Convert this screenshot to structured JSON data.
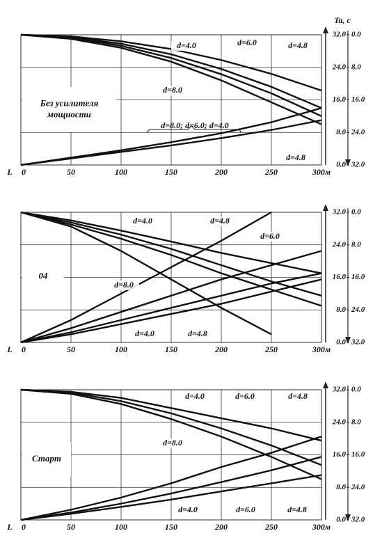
{
  "chart_data": [
    {
      "type": "line",
      "ylabel": "Ta, c",
      "xlabel": "L",
      "inset": [
        "Без усилителя",
        "мощности"
      ],
      "x": [
        0,
        50,
        100,
        150,
        200,
        250,
        300
      ],
      "series": [
        {
          "color": "#111111",
          "values": [
            32,
            31.6,
            30.4,
            28.5,
            25.8,
            22.4,
            18.3
          ]
        },
        {
          "color": "#111111",
          "values": [
            32,
            31.4,
            29.8,
            27.2,
            23.6,
            19.2,
            14.0
          ]
        },
        {
          "color": "#111111",
          "values": [
            32,
            31.3,
            29.3,
            26.3,
            22.3,
            17.6,
            12.0
          ]
        },
        {
          "color": "#111111",
          "values": [
            32,
            31.0,
            28.8,
            25.4,
            20.8,
            15.4,
            10.0
          ]
        },
        {
          "color": "#111111",
          "values": [
            0,
            1.8,
            3.6,
            5.6,
            7.8,
            10.5,
            14.0
          ]
        },
        {
          "color": "#111111",
          "values": [
            0,
            1.6,
            3.2,
            4.8,
            6.6,
            8.6,
            11.0
          ]
        }
      ],
      "annotations": [
        "d=4.0",
        "d=6.0",
        "d=4.8",
        "d=8.0",
        "d=8.0; d=6.0; d=4.0",
        "d=4.8"
      ],
      "xlim": [
        0,
        300
      ],
      "ylim": [
        0,
        32
      ],
      "y2lim": [
        32,
        0
      ],
      "xticks": [
        {
          "value": 0,
          "label": "0"
        },
        50,
        100,
        150,
        200,
        250,
        {
          "value": 300,
          "label": "300м"
        }
      ],
      "yticks": [
        {
          "value": 0,
          "label": "0.0"
        },
        {
          "value": 8,
          "label": "8.0"
        },
        {
          "value": 16,
          "label": "16.0"
        },
        {
          "value": 24,
          "label": "24.0"
        },
        {
          "value": 32,
          "label": "32.0"
        }
      ],
      "y2ticks": [
        {
          "value": 32,
          "label": "32.0"
        },
        {
          "value": 24,
          "label": "24.0"
        },
        {
          "value": 16,
          "label": "16.0"
        },
        {
          "value": 8,
          "label": "8.0"
        },
        {
          "value": 0,
          "label": "0.0"
        }
      ],
      "grid": true
    },
    {
      "type": "line",
      "xlabel": "L",
      "inset": [
        "04"
      ],
      "x": [
        0,
        50,
        100,
        150,
        200,
        250,
        300
      ],
      "series": [
        {
          "color": "#111111",
          "values": [
            32,
            30,
            27.5,
            24.8,
            22,
            19.5,
            17
          ]
        },
        {
          "color": "#111111",
          "values": [
            32,
            29.5,
            26.5,
            23,
            19,
            15,
            11.5
          ]
        },
        {
          "color": "#111111",
          "values": [
            32,
            29,
            25.5,
            21.5,
            17,
            13,
            9
          ]
        },
        {
          "color": "#111111",
          "values": [
            32,
            28.5,
            22.5,
            15.5,
            8.5,
            2.0,
            null
          ]
        },
        {
          "color": "#111111",
          "values": [
            0,
            5.5,
            12,
            18.5,
            25,
            32,
            null
          ]
        },
        {
          "color": "#111111",
          "values": [
            0,
            3.5,
            7.5,
            11.5,
            15.5,
            19,
            22.5
          ]
        },
        {
          "color": "#111111",
          "values": [
            0,
            2.5,
            5.5,
            8.5,
            11.5,
            14.5,
            17
          ]
        },
        {
          "color": "#111111",
          "values": [
            0,
            2,
            4.5,
            7,
            9.5,
            12.5,
            15.5
          ]
        }
      ],
      "annotations": [
        "d=4.0",
        "d=4.8",
        "d=6.0",
        "d=8.0",
        "d=4.0",
        "d=4.8"
      ],
      "xlim": [
        0,
        300
      ],
      "ylim": [
        0,
        32
      ],
      "y2lim": [
        32,
        0
      ],
      "xticks": [
        {
          "value": 0,
          "label": "0"
        },
        50,
        100,
        150,
        200,
        250,
        {
          "value": 300,
          "label": "300м"
        }
      ],
      "yticks": [
        {
          "value": 0,
          "label": "0.0"
        },
        {
          "value": 8,
          "label": "8.0"
        },
        {
          "value": 16,
          "label": "16.0"
        },
        {
          "value": 24,
          "label": "24.0"
        },
        {
          "value": 32,
          "label": "32.0"
        }
      ],
      "y2ticks": [
        {
          "value": 32,
          "label": "32.0"
        },
        {
          "value": 24,
          "label": "24.0"
        },
        {
          "value": 16,
          "label": "16.0"
        },
        {
          "value": 8,
          "label": "8.0"
        },
        {
          "value": 0,
          "label": "0.0"
        }
      ],
      "grid": true
    },
    {
      "type": "line",
      "xlabel": "L",
      "inset": [
        "Старт"
      ],
      "x": [
        0,
        50,
        100,
        150,
        200,
        250,
        300
      ],
      "series": [
        {
          "color": "#111111",
          "values": [
            32,
            31.5,
            30,
            27.5,
            25,
            22.5,
            19.5
          ]
        },
        {
          "color": "#111111",
          "values": [
            32,
            31.3,
            29.2,
            26.2,
            22.5,
            18.3,
            13.5
          ]
        },
        {
          "color": "#111111",
          "values": [
            32,
            31,
            28.5,
            24.8,
            20.5,
            15.5,
            10
          ]
        },
        {
          "color": "#111111",
          "values": [
            0,
            2.5,
            5.5,
            9,
            13,
            16.5,
            20.5
          ]
        },
        {
          "color": "#111111",
          "values": [
            0,
            1.8,
            4,
            6.5,
            9.3,
            12.2,
            15.5
          ]
        },
        {
          "color": "#111111",
          "values": [
            0,
            1.5,
            3.2,
            5,
            7,
            9,
            11
          ]
        }
      ],
      "annotations": [
        "d=4.0",
        "d=6.0",
        "d=4.8",
        "d=8.0",
        "d=4.0",
        "d=6.0",
        "d=4.8"
      ],
      "xlim": [
        0,
        300
      ],
      "ylim": [
        0,
        32
      ],
      "y2lim": [
        32,
        0
      ],
      "xticks": [
        {
          "value": 0,
          "label": "0"
        },
        50,
        100,
        150,
        200,
        250,
        {
          "value": 300,
          "label": "300м"
        }
      ],
      "yticks": [
        {
          "value": 0,
          "label": "0.0"
        },
        {
          "value": 8,
          "label": "8.0"
        },
        {
          "value": 16,
          "label": "16.0"
        },
        {
          "value": 24,
          "label": "24.0"
        },
        {
          "value": 32,
          "label": "32.0"
        }
      ],
      "y2ticks": [
        {
          "value": 32,
          "label": "32.0"
        },
        {
          "value": 24,
          "label": "24.0"
        },
        {
          "value": 16,
          "label": "16.0"
        },
        {
          "value": 8,
          "label": "8.0"
        },
        {
          "value": 0,
          "label": "0.0"
        }
      ],
      "grid": true
    }
  ]
}
